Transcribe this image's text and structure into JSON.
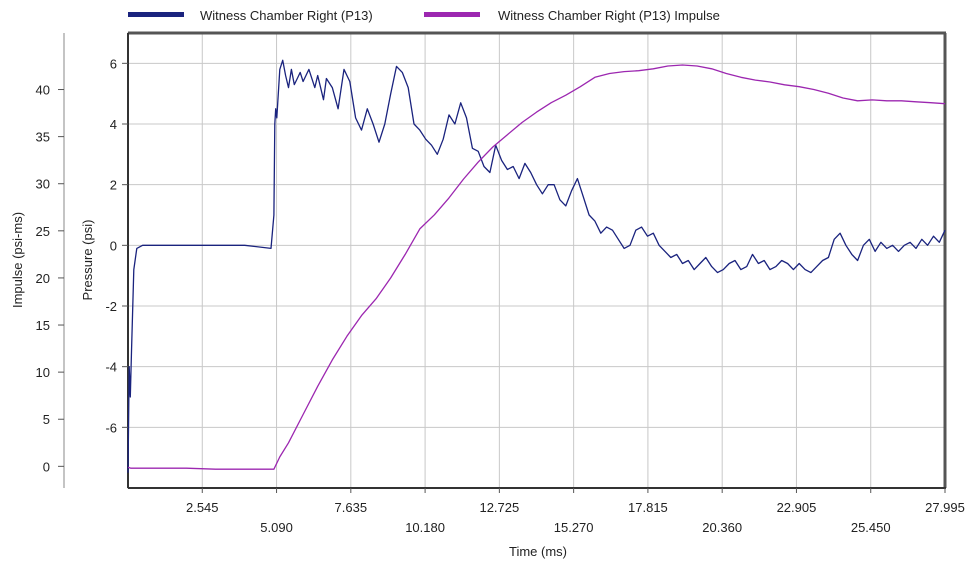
{
  "chart_data": {
    "type": "line",
    "xlabel": "Time (ms)",
    "ylabel_left_outer": "Impulse (psi-ms)",
    "ylabel_left_inner": "Pressure (psi)",
    "xlim": [
      0,
      27.995
    ],
    "x_ticks": [
      "2.545",
      "5.090",
      "7.635",
      "10.180",
      "12.725",
      "15.270",
      "17.815",
      "20.360",
      "22.905",
      "25.450",
      "27.995"
    ],
    "x_tick_values": [
      2.545,
      5.09,
      7.635,
      10.18,
      12.725,
      15.27,
      17.815,
      20.36,
      22.905,
      25.45,
      27.995
    ],
    "pressure_ylim": [
      -8,
      7
    ],
    "pressure_ticks": [
      "6",
      "4",
      "2",
      "0",
      "-2",
      "-4",
      "-6"
    ],
    "pressure_tick_values": [
      6,
      4,
      2,
      0,
      -2,
      -4,
      -6
    ],
    "impulse_ylim": [
      -2.3,
      46
    ],
    "impulse_ticks": [
      "40",
      "35",
      "30",
      "25",
      "20",
      "15",
      "10",
      "5",
      "0"
    ],
    "impulse_tick_values": [
      40,
      35,
      30,
      25,
      20,
      15,
      10,
      5,
      0
    ],
    "grid": true,
    "legend_position": "top",
    "series": [
      {
        "name": "Witness Chamber Right (P13)",
        "color": "#1a237e",
        "axis": "pressure",
        "x": [
          0,
          0.04,
          0.08,
          0.12,
          0.2,
          0.3,
          0.5,
          1.0,
          2.0,
          3.0,
          4.0,
          4.9,
          5.0,
          5.03,
          5.06,
          5.1,
          5.2,
          5.3,
          5.4,
          5.5,
          5.6,
          5.7,
          5.8,
          5.9,
          6.0,
          6.2,
          6.4,
          6.5,
          6.7,
          6.8,
          7.0,
          7.2,
          7.4,
          7.6,
          7.8,
          8.0,
          8.2,
          8.4,
          8.6,
          8.8,
          9.0,
          9.2,
          9.4,
          9.6,
          9.8,
          10.0,
          10.2,
          10.4,
          10.6,
          10.8,
          11.0,
          11.2,
          11.4,
          11.6,
          11.8,
          12.0,
          12.2,
          12.4,
          12.6,
          12.8,
          13.0,
          13.2,
          13.4,
          13.6,
          13.8,
          14.0,
          14.2,
          14.4,
          14.6,
          14.8,
          15.0,
          15.2,
          15.4,
          15.6,
          15.8,
          16.0,
          16.2,
          16.4,
          16.6,
          16.8,
          17.0,
          17.2,
          17.4,
          17.6,
          17.8,
          18.0,
          18.2,
          18.4,
          18.6,
          18.8,
          19.0,
          19.2,
          19.4,
          19.6,
          19.8,
          20.0,
          20.2,
          20.4,
          20.6,
          20.8,
          21.0,
          21.2,
          21.4,
          21.6,
          21.8,
          22.0,
          22.2,
          22.4,
          22.6,
          22.8,
          23.0,
          23.2,
          23.4,
          23.6,
          23.8,
          24.0,
          24.2,
          24.4,
          24.6,
          24.8,
          25.0,
          25.2,
          25.4,
          25.6,
          25.8,
          26.0,
          26.2,
          26.4,
          26.6,
          26.8,
          27.0,
          27.2,
          27.4,
          27.6,
          27.8,
          27.995
        ],
        "y": [
          -7.5,
          -4.0,
          -5.0,
          -3.5,
          -0.8,
          -0.1,
          0.0,
          0.0,
          0.0,
          0.0,
          0.0,
          -0.1,
          1.0,
          4.0,
          4.5,
          4.2,
          5.8,
          6.1,
          5.6,
          5.2,
          5.8,
          5.3,
          5.5,
          5.7,
          5.4,
          5.8,
          5.2,
          5.6,
          4.8,
          5.5,
          5.2,
          4.5,
          5.8,
          5.4,
          4.2,
          3.8,
          4.5,
          4.0,
          3.4,
          4.0,
          5.0,
          5.9,
          5.7,
          5.2,
          4.0,
          3.8,
          3.5,
          3.3,
          3.0,
          3.5,
          4.3,
          4.0,
          4.7,
          4.2,
          3.2,
          3.1,
          2.6,
          2.4,
          3.3,
          2.8,
          2.5,
          2.6,
          2.2,
          2.7,
          2.4,
          2.0,
          1.7,
          2.0,
          2.0,
          1.5,
          1.3,
          1.8,
          2.2,
          1.6,
          1.0,
          0.8,
          0.4,
          0.6,
          0.5,
          0.2,
          -0.1,
          0.0,
          0.5,
          0.6,
          0.3,
          0.4,
          0.0,
          -0.2,
          -0.4,
          -0.3,
          -0.6,
          -0.5,
          -0.8,
          -0.6,
          -0.4,
          -0.7,
          -0.9,
          -0.8,
          -0.6,
          -0.5,
          -0.8,
          -0.7,
          -0.3,
          -0.6,
          -0.5,
          -0.8,
          -0.7,
          -0.5,
          -0.6,
          -0.8,
          -0.6,
          -0.8,
          -0.9,
          -0.7,
          -0.5,
          -0.4,
          0.2,
          0.4,
          0.0,
          -0.3,
          -0.5,
          0.0,
          0.2,
          -0.2,
          0.1,
          -0.1,
          0.0,
          -0.2,
          0.0,
          0.1,
          -0.1,
          0.2,
          0.0,
          0.3,
          0.1,
          0.5
        ]
      },
      {
        "name": "Witness Chamber Right (P13) Impulse",
        "color": "#9c27b0",
        "axis": "impulse",
        "x": [
          0,
          0.1,
          1.0,
          2.0,
          3.0,
          4.0,
          5.0,
          5.2,
          5.5,
          6.0,
          6.5,
          7.0,
          7.5,
          8.0,
          8.5,
          9.0,
          9.5,
          10.0,
          10.5,
          11.0,
          11.5,
          12.0,
          12.5,
          13.0,
          13.5,
          14.0,
          14.5,
          15.0,
          15.5,
          16.0,
          16.5,
          17.0,
          17.5,
          18.0,
          18.5,
          19.0,
          19.5,
          20.0,
          20.5,
          21.0,
          21.5,
          22.0,
          22.5,
          23.0,
          23.5,
          24.0,
          24.5,
          25.0,
          25.5,
          26.0,
          26.5,
          27.0,
          27.5,
          27.995
        ],
        "y": [
          -0.1,
          -0.2,
          -0.2,
          -0.2,
          -0.3,
          -0.3,
          -0.3,
          1.0,
          2.5,
          5.5,
          8.5,
          11.3,
          13.8,
          16.0,
          17.8,
          20.0,
          22.5,
          25.2,
          26.7,
          28.5,
          30.5,
          32.3,
          33.9,
          35.2,
          36.5,
          37.6,
          38.6,
          39.4,
          40.3,
          41.3,
          41.7,
          41.9,
          42.0,
          42.2,
          42.5,
          42.6,
          42.5,
          42.2,
          41.7,
          41.3,
          41.0,
          40.8,
          40.5,
          40.3,
          40.0,
          39.6,
          39.1,
          38.8,
          38.9,
          38.8,
          38.8,
          38.7,
          38.6,
          38.5
        ]
      }
    ]
  }
}
